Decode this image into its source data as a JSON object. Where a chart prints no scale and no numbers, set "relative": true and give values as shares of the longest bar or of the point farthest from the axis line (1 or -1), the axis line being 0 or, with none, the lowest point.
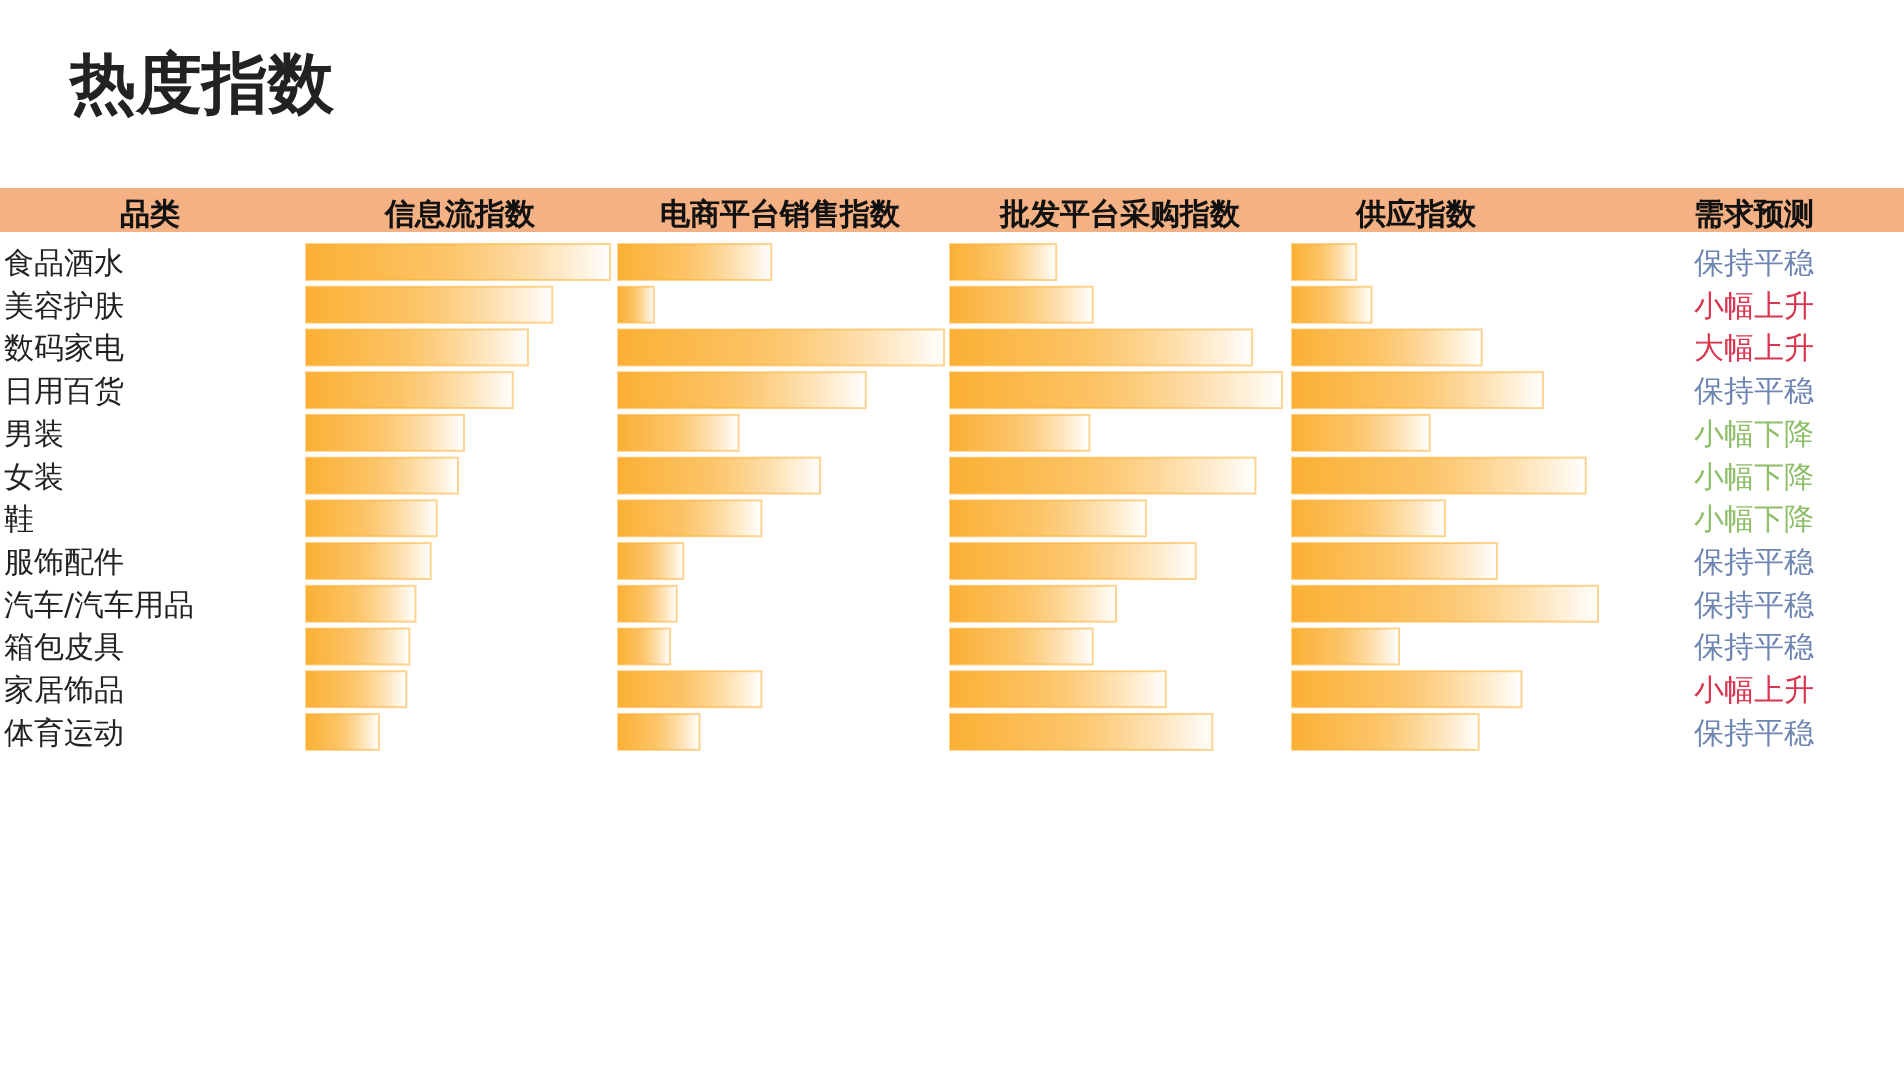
{
  "chart_data": [
    {
      "type": "other",
      "title": "热度指数"
    },
    {
      "type": "bar",
      "orientation": "horizontal",
      "relative": true,
      "title": "信息流指数",
      "ylabel": "品类",
      "color": "#fbb034",
      "categories": [
        "食品酒水",
        "美容护肤",
        "数码家电",
        "日用百货",
        "男装",
        "女装",
        "鞋",
        "服饰配件",
        "汽车/汽车用品",
        "箱包皮具",
        "家居饰品",
        "体育运动"
      ],
      "values": [
        1,
        0.81,
        0.73,
        0.68,
        0.52,
        0.5,
        0.43,
        0.41,
        0.36,
        0.34,
        0.33,
        0.24
      ]
    },
    {
      "type": "bar",
      "orientation": "horizontal",
      "relative": true,
      "title": "电商平台销售指数",
      "color": "#fbb034",
      "values": [
        0.47,
        0.11,
        1,
        0.76,
        0.37,
        0.62,
        0.44,
        0.2,
        0.18,
        0.16,
        0.44,
        0.25
      ]
    },
    {
      "type": "bar",
      "orientation": "horizontal",
      "relative": true,
      "title": "批发平台采购指数",
      "color": "#fbb034",
      "values": [
        0.32,
        0.43,
        0.91,
        1,
        0.42,
        0.92,
        0.59,
        0.74,
        0.5,
        0.43,
        0.65,
        0.79
      ]
    },
    {
      "type": "bar",
      "orientation": "horizontal",
      "relative": true,
      "title": "供应指数",
      "color": "#fbb034",
      "values": [
        0.21,
        0.26,
        0.62,
        0.82,
        0.45,
        0.96,
        0.5,
        0.67,
        1,
        0.35,
        0.75,
        0.61
      ]
    },
    {
      "type": "other",
      "title": "需求预测",
      "annotations": [
        "保持平稳",
        "小幅上升",
        "大幅上升",
        "保持平稳",
        "小幅下降",
        "小幅下降",
        "小幅下降",
        "保持平稳",
        "保持平稳",
        "保持平稳",
        "小幅上升",
        "保持平稳"
      ],
      "colors": [
        "#6f86b3",
        "#d9364f",
        "#d9364f",
        "#6f86b3",
        "#8fbf6a",
        "#8fbf6a",
        "#8fbf6a",
        "#6f86b3",
        "#6f86b3",
        "#6f86b3",
        "#d9364f",
        "#6f86b3"
      ]
    }
  ]
}
